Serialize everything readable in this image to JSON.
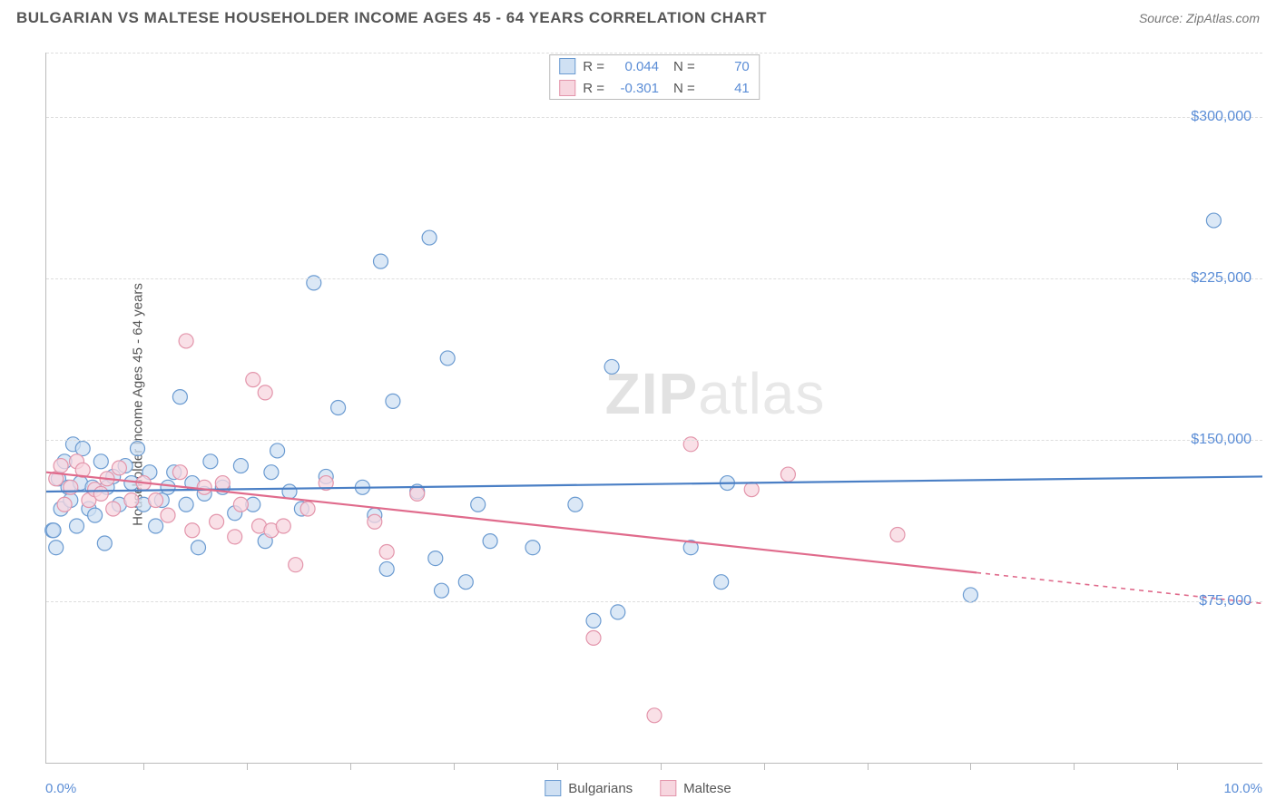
{
  "title": "BULGARIAN VS MALTESE HOUSEHOLDER INCOME AGES 45 - 64 YEARS CORRELATION CHART",
  "source": "Source: ZipAtlas.com",
  "y_axis_title": "Householder Income Ages 45 - 64 years",
  "watermark_bold": "ZIP",
  "watermark_light": "atlas",
  "chart": {
    "type": "scatter",
    "background_color": "#ffffff",
    "grid_color": "#dddddd",
    "axis_color": "#bbbbbb",
    "xlim": [
      0.0,
      10.0
    ],
    "ylim": [
      0,
      330000
    ],
    "y_gridlines": [
      75000,
      150000,
      225000,
      300000
    ],
    "y_tick_labels": [
      "$75,000",
      "$150,000",
      "$225,000",
      "$300,000"
    ],
    "x_ticks": [
      0.8,
      1.65,
      2.5,
      3.35,
      4.2,
      5.05,
      5.9,
      6.75,
      7.6,
      8.45,
      9.3
    ],
    "x_min_label": "0.0%",
    "x_max_label": "10.0%",
    "tick_label_color": "#5b8dd6",
    "tick_label_fontsize": 16,
    "marker_radius": 8,
    "marker_stroke_width": 1.2,
    "series": [
      {
        "name": "Bulgarians",
        "fill": "#cfe0f3",
        "stroke": "#6b9bd1",
        "fill_opacity": 0.75,
        "R": "0.044",
        "N": "70",
        "trend": {
          "y_at_xmin": 126000,
          "y_at_xmax": 133000,
          "solid_until_x": 10.0,
          "color": "#4a7fc5",
          "width": 2.2
        },
        "points": [
          [
            0.05,
            108000
          ],
          [
            0.06,
            108000
          ],
          [
            0.08,
            100000
          ],
          [
            0.1,
            132000
          ],
          [
            0.12,
            118000
          ],
          [
            0.15,
            140000
          ],
          [
            0.18,
            128000
          ],
          [
            0.2,
            122000
          ],
          [
            0.22,
            148000
          ],
          [
            0.25,
            110000
          ],
          [
            0.28,
            130000
          ],
          [
            0.3,
            146000
          ],
          [
            0.35,
            118000
          ],
          [
            0.38,
            128000
          ],
          [
            0.4,
            115000
          ],
          [
            0.45,
            140000
          ],
          [
            0.48,
            102000
          ],
          [
            0.5,
            128000
          ],
          [
            0.55,
            133000
          ],
          [
            0.6,
            120000
          ],
          [
            0.65,
            138000
          ],
          [
            0.7,
            130000
          ],
          [
            0.75,
            146000
          ],
          [
            0.8,
            120000
          ],
          [
            0.85,
            135000
          ],
          [
            0.9,
            110000
          ],
          [
            0.95,
            122000
          ],
          [
            1.0,
            128000
          ],
          [
            1.05,
            135000
          ],
          [
            1.1,
            170000
          ],
          [
            1.15,
            120000
          ],
          [
            1.2,
            130000
          ],
          [
            1.25,
            100000
          ],
          [
            1.3,
            125000
          ],
          [
            1.35,
            140000
          ],
          [
            1.45,
            128000
          ],
          [
            1.55,
            116000
          ],
          [
            1.6,
            138000
          ],
          [
            1.7,
            120000
          ],
          [
            1.8,
            103000
          ],
          [
            1.85,
            135000
          ],
          [
            1.9,
            145000
          ],
          [
            2.0,
            126000
          ],
          [
            2.1,
            118000
          ],
          [
            2.2,
            223000
          ],
          [
            2.3,
            133000
          ],
          [
            2.4,
            165000
          ],
          [
            2.6,
            128000
          ],
          [
            2.7,
            115000
          ],
          [
            2.75,
            233000
          ],
          [
            2.8,
            90000
          ],
          [
            2.85,
            168000
          ],
          [
            3.05,
            126000
          ],
          [
            3.15,
            244000
          ],
          [
            3.2,
            95000
          ],
          [
            3.25,
            80000
          ],
          [
            3.3,
            188000
          ],
          [
            3.45,
            84000
          ],
          [
            3.55,
            120000
          ],
          [
            3.65,
            103000
          ],
          [
            4.0,
            100000
          ],
          [
            4.35,
            120000
          ],
          [
            4.5,
            66000
          ],
          [
            4.65,
            184000
          ],
          [
            4.7,
            70000
          ],
          [
            5.3,
            100000
          ],
          [
            5.55,
            84000
          ],
          [
            5.6,
            130000
          ],
          [
            7.6,
            78000
          ],
          [
            9.6,
            252000
          ]
        ]
      },
      {
        "name": "Maltese",
        "fill": "#f7d6df",
        "stroke": "#e395ab",
        "fill_opacity": 0.75,
        "R": "-0.301",
        "N": "41",
        "trend": {
          "y_at_xmin": 135000,
          "y_at_xmax": 74000,
          "solid_until_x": 7.65,
          "color": "#e06b8c",
          "width": 2.2
        },
        "points": [
          [
            0.08,
            132000
          ],
          [
            0.12,
            138000
          ],
          [
            0.15,
            120000
          ],
          [
            0.2,
            128000
          ],
          [
            0.25,
            140000
          ],
          [
            0.3,
            136000
          ],
          [
            0.35,
            122000
          ],
          [
            0.4,
            127000
          ],
          [
            0.45,
            125000
          ],
          [
            0.5,
            132000
          ],
          [
            0.55,
            118000
          ],
          [
            0.6,
            137000
          ],
          [
            0.7,
            122000
          ],
          [
            0.8,
            130000
          ],
          [
            0.9,
            122000
          ],
          [
            1.0,
            115000
          ],
          [
            1.1,
            135000
          ],
          [
            1.15,
            196000
          ],
          [
            1.2,
            108000
          ],
          [
            1.3,
            128000
          ],
          [
            1.4,
            112000
          ],
          [
            1.45,
            130000
          ],
          [
            1.55,
            105000
          ],
          [
            1.6,
            120000
          ],
          [
            1.7,
            178000
          ],
          [
            1.75,
            110000
          ],
          [
            1.8,
            172000
          ],
          [
            1.85,
            108000
          ],
          [
            1.95,
            110000
          ],
          [
            2.05,
            92000
          ],
          [
            2.15,
            118000
          ],
          [
            2.3,
            130000
          ],
          [
            2.7,
            112000
          ],
          [
            2.8,
            98000
          ],
          [
            3.05,
            125000
          ],
          [
            4.5,
            58000
          ],
          [
            5.0,
            22000
          ],
          [
            5.3,
            148000
          ],
          [
            5.8,
            127000
          ],
          [
            6.1,
            134000
          ],
          [
            7.0,
            106000
          ]
        ]
      }
    ]
  },
  "legend_bottom": [
    {
      "label": "Bulgarians",
      "fill": "#cfe0f3",
      "stroke": "#6b9bd1"
    },
    {
      "label": "Maltese",
      "fill": "#f7d6df",
      "stroke": "#e395ab"
    }
  ]
}
